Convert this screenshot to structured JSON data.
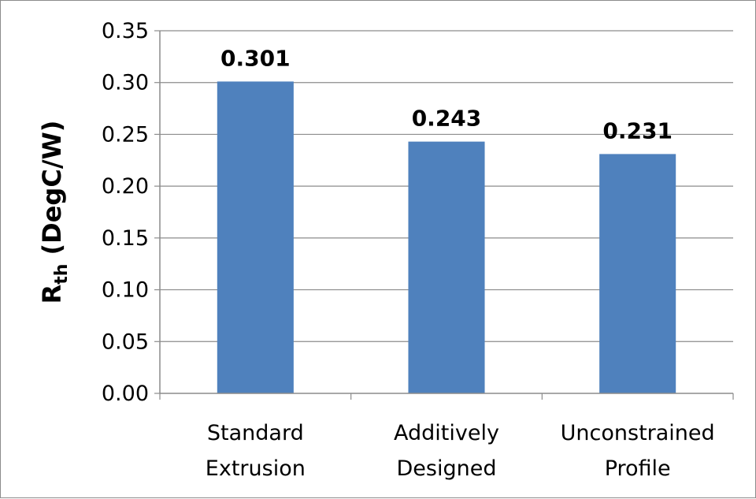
{
  "chart_data": {
    "type": "bar",
    "title": "",
    "xlabel": "",
    "ylabel": "R",
    "ylabel_subscript": "th",
    "ylabel_unit": " (DegC/W)",
    "categories": [
      [
        "Standard",
        "Extrusion"
      ],
      [
        "Additively",
        "Designed"
      ],
      [
        "Unconstrained",
        "Profile"
      ]
    ],
    "values": [
      0.301,
      0.243,
      0.231
    ],
    "data_labels": [
      "0.301",
      "0.243",
      "0.231"
    ],
    "ylim": [
      0,
      0.35
    ],
    "yticks": [
      "0.00",
      "0.05",
      "0.10",
      "0.15",
      "0.20",
      "0.25",
      "0.30",
      "0.35"
    ],
    "grid": true,
    "legend": "none",
    "bar_color": "#4f81bd"
  }
}
